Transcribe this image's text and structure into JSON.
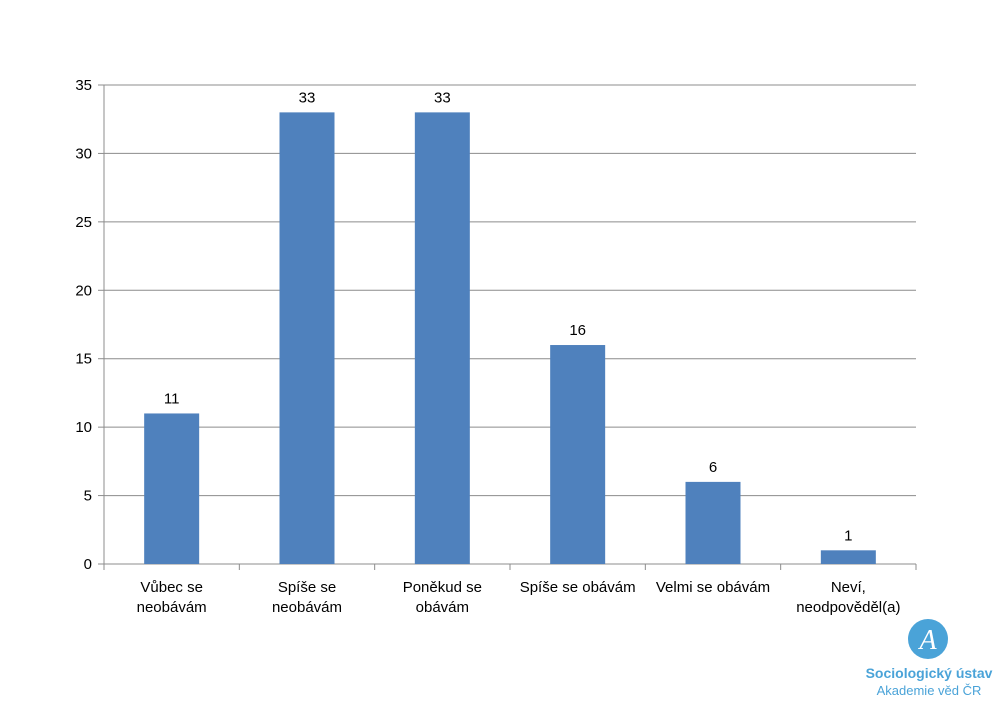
{
  "chart_data": {
    "type": "bar",
    "categories": [
      [
        "Vůbec se",
        "neobávám"
      ],
      [
        "Spíše se",
        "neobávám"
      ],
      [
        "Poněkud se",
        "obávám"
      ],
      [
        "Spíše se obávám"
      ],
      [
        "Velmi se obávám"
      ],
      [
        "Neví,",
        "neodpověděl(a)"
      ]
    ],
    "values": [
      11,
      33,
      33,
      16,
      6,
      1
    ],
    "data_labels": [
      "11",
      "33",
      "33",
      "16",
      "6",
      "1"
    ],
    "title": "",
    "xlabel": "",
    "ylabel": "",
    "ylim": [
      0,
      35
    ],
    "yticks": [
      0,
      5,
      10,
      15,
      20,
      25,
      30,
      35
    ],
    "grid": true,
    "bar_color": "#4f81bd",
    "grid_color": "#8c8c8c"
  },
  "logo": {
    "line1": "Sociologický ústav",
    "line2": "Akademie věd ČR",
    "mark": "A",
    "color": "#4aa3d8"
  }
}
